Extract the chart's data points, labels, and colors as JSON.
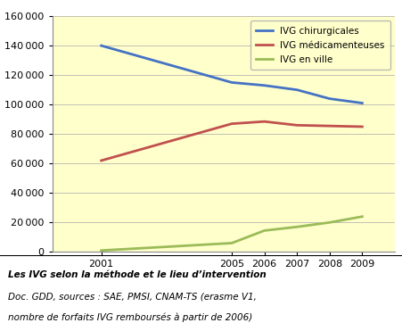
{
  "years": [
    2001,
    2005,
    2006,
    2007,
    2008,
    2009
  ],
  "ivg_chirurgicales": [
    140000,
    115000,
    113000,
    110000,
    104000,
    101000
  ],
  "ivg_medicamenteuses": [
    62000,
    87000,
    88500,
    86000,
    85500,
    85000
  ],
  "ivg_en_ville": [
    1000,
    6000,
    14500,
    17000,
    20000,
    24000
  ],
  "colors": {
    "chirurgicales": "#4472C4",
    "medicamenteuses": "#C0504D",
    "en_ville": "#9BBB59"
  },
  "ylim": [
    0,
    160000
  ],
  "yticks": [
    0,
    20000,
    40000,
    60000,
    80000,
    100000,
    120000,
    140000,
    160000
  ],
  "bg_plot": "#FFFFCC",
  "bg_caption": "#F0F0F0",
  "legend_labels": [
    "IVG chirurgicales",
    "IVG médicamenteuses",
    "IVG en ville"
  ],
  "title": "Les IVG selon la méthode et le lieu d’intervention",
  "caption_line2": "Doc. GDD, sources : SAE, PMSI, CNAM-TS (erasme V1,",
  "caption_line3": "nombre de forfaits IVG remboursés à partir de 2006)"
}
